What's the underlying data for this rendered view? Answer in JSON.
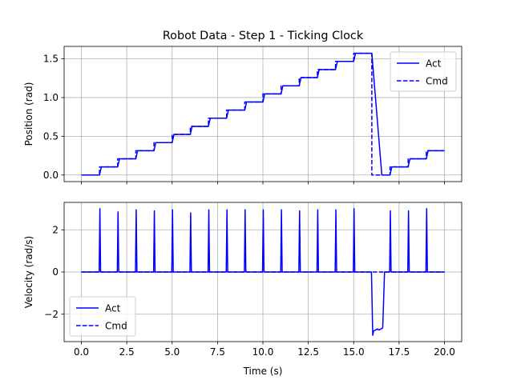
{
  "chart_data": [
    {
      "type": "line",
      "title": "Robot Data - Step 1 - Ticking Clock",
      "xlabel": "",
      "ylabel": "Position (rad)",
      "xlim": [
        -0.95,
        20.95
      ],
      "ylim": [
        -0.085,
        1.66
      ],
      "xticks": [
        0,
        2.5,
        5,
        7.5,
        10,
        12.5,
        15,
        17.5,
        20
      ],
      "show_xticklabels": false,
      "yticks": [
        0.0,
        0.5,
        1.0,
        1.5
      ],
      "ytick_labels": [
        "0.0",
        "0.5",
        "1.0",
        "1.5"
      ],
      "grid": true,
      "legend": "upper right",
      "color": "#0000ff",
      "series": [
        {
          "name": "Act",
          "style": "solid",
          "x": [
            0,
            1,
            1.1,
            2,
            2.1,
            3,
            3.1,
            4,
            4.1,
            5,
            5.1,
            6,
            6.1,
            7,
            7.1,
            8,
            8.1,
            9,
            9.1,
            10,
            10.1,
            11,
            11.1,
            12,
            12.1,
            13,
            13.1,
            14,
            14.1,
            15,
            15.1,
            16,
            16.55,
            17,
            17.1,
            18,
            18.1,
            19,
            19.1,
            20
          ],
          "y": [
            0,
            0,
            0.105,
            0.105,
            0.209,
            0.209,
            0.314,
            0.314,
            0.419,
            0.419,
            0.524,
            0.524,
            0.628,
            0.628,
            0.733,
            0.733,
            0.838,
            0.838,
            0.942,
            0.942,
            1.047,
            1.047,
            1.152,
            1.152,
            1.257,
            1.257,
            1.361,
            1.361,
            1.466,
            1.466,
            1.571,
            1.571,
            0,
            0,
            0.105,
            0.105,
            0.209,
            0.209,
            0.314,
            0.314
          ]
        },
        {
          "name": "Cmd",
          "style": "dashed",
          "x": [
            0,
            1,
            1,
            2,
            2,
            3,
            3,
            4,
            4,
            5,
            5,
            6,
            6,
            7,
            7,
            8,
            8,
            9,
            9,
            10,
            10,
            11,
            11,
            12,
            12,
            13,
            13,
            14,
            14,
            15,
            15,
            16,
            16,
            17,
            17,
            18,
            18,
            19,
            19,
            20
          ],
          "y": [
            0,
            0,
            0.105,
            0.105,
            0.209,
            0.209,
            0.314,
            0.314,
            0.419,
            0.419,
            0.524,
            0.524,
            0.628,
            0.628,
            0.733,
            0.733,
            0.838,
            0.838,
            0.942,
            0.942,
            1.047,
            1.047,
            1.152,
            1.152,
            1.257,
            1.257,
            1.361,
            1.361,
            1.466,
            1.466,
            1.571,
            1.571,
            0,
            0,
            0.105,
            0.105,
            0.209,
            0.209,
            0.314,
            0.314
          ]
        }
      ]
    },
    {
      "type": "line",
      "title": "",
      "xlabel": "Time (s)",
      "ylabel": "Velocity (rad/s)",
      "xlim": [
        -0.95,
        20.95
      ],
      "ylim": [
        -3.3,
        3.3
      ],
      "xticks": [
        0,
        2.5,
        5,
        7.5,
        10,
        12.5,
        15,
        17.5,
        20
      ],
      "xtick_labels": [
        "0.0",
        "2.5",
        "5.0",
        "7.5",
        "10.0",
        "12.5",
        "15.0",
        "17.5",
        "20.0"
      ],
      "yticks": [
        -2,
        0,
        2
      ],
      "ytick_labels": [
        "−2",
        "0",
        "2"
      ],
      "grid": true,
      "legend": "lower left",
      "color": "#0000ff",
      "series": [
        {
          "name": "Act",
          "style": "solid",
          "x": [
            0,
            0.98,
            1.02,
            1.06,
            1.98,
            2.02,
            2.06,
            2.98,
            3.02,
            3.06,
            3.98,
            4.02,
            4.06,
            4.98,
            5.02,
            5.06,
            5.98,
            6.02,
            6.06,
            6.98,
            7.02,
            7.06,
            7.98,
            8.02,
            8.06,
            8.98,
            9.02,
            9.06,
            9.98,
            10.02,
            10.06,
            10.98,
            11.02,
            11.06,
            11.98,
            12.02,
            12.06,
            12.98,
            13.02,
            13.06,
            13.98,
            14.02,
            14.06,
            14.98,
            15.02,
            15.06,
            15.98,
            16.05,
            16.1,
            16.2,
            16.3,
            16.4,
            16.5,
            16.6,
            16.7,
            16.8,
            16.98,
            17.02,
            17.06,
            17.98,
            18.02,
            18.06,
            18.98,
            19.02,
            19.06,
            20
          ],
          "y": [
            0,
            0,
            3.0,
            0,
            0,
            2.85,
            0,
            0,
            2.95,
            0,
            0,
            2.9,
            0,
            0,
            2.95,
            0,
            0,
            2.8,
            0,
            0,
            2.95,
            0,
            0,
            2.95,
            0,
            0,
            2.95,
            0,
            0,
            2.95,
            0,
            0,
            2.95,
            0,
            0,
            2.9,
            0,
            0,
            2.95,
            0,
            0,
            2.95,
            0,
            0,
            3.0,
            0,
            0,
            -3.0,
            -2.8,
            -2.75,
            -2.7,
            -2.75,
            -2.7,
            -2.65,
            0,
            0,
            0,
            2.9,
            0,
            0,
            2.9,
            0,
            0,
            3.0,
            0,
            0
          ]
        },
        {
          "name": "Cmd",
          "style": "dashed",
          "x": [
            0,
            20
          ],
          "y": [
            0,
            0
          ]
        }
      ]
    }
  ]
}
